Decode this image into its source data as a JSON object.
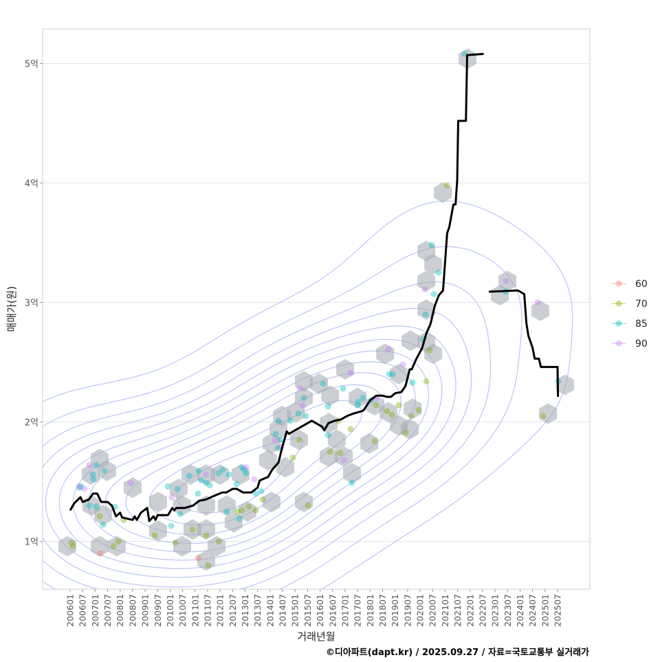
{
  "chart_data": {
    "type": "scatter",
    "title": "",
    "xlabel": "거래년월",
    "ylabel": "매매가(원)",
    "caption": "©디아파트(dapt.kr) / 2025.09.27 / 자료=국토교통부 실거래가",
    "x_unit": "months since 2006-01",
    "xlim": [
      -13.2,
      249.5
    ],
    "ylim": [
      0.6,
      5.29
    ],
    "grid": "horizontal",
    "y_ticks": [
      {
        "value": 1,
        "label": "1억"
      },
      {
        "value": 2,
        "label": "2억"
      },
      {
        "value": 3,
        "label": "3억"
      },
      {
        "value": 4,
        "label": "4억"
      },
      {
        "value": 5,
        "label": "5억"
      }
    ],
    "x_tick_labels": [
      "200601",
      "200607",
      "200701",
      "200707",
      "200801",
      "200807",
      "200901",
      "200907",
      "201001",
      "201007",
      "201101",
      "201107",
      "201201",
      "201207",
      "201301",
      "201307",
      "201401",
      "201407",
      "201501",
      "201507",
      "201601",
      "201607",
      "201701",
      "201707",
      "201801",
      "201807",
      "201901",
      "201907",
      "202001",
      "202007",
      "202101",
      "202107",
      "202201",
      "202207",
      "202301",
      "202307",
      "202401",
      "202407",
      "202501",
      "202507"
    ],
    "legend": {
      "position": "right",
      "entries": [
        {
          "label": "60",
          "color": "#F8766D"
        },
        {
          "label": "70",
          "color": "#7CAE00"
        },
        {
          "label": "85",
          "color": "#00BFC4"
        },
        {
          "label": "90",
          "color": "#C77CFF"
        }
      ]
    },
    "median_line": [
      [
        0,
        1.26
      ],
      [
        2,
        1.32
      ],
      [
        5,
        1.37
      ],
      [
        6,
        1.33
      ],
      [
        9,
        1.35
      ],
      [
        11,
        1.4
      ],
      [
        13,
        1.4
      ],
      [
        15,
        1.33
      ],
      [
        18,
        1.33
      ],
      [
        20,
        1.3
      ],
      [
        22,
        1.21
      ],
      [
        24,
        1.24
      ],
      [
        25,
        1.2
      ],
      [
        30,
        1.18
      ],
      [
        31,
        1.21
      ],
      [
        32,
        1.18
      ],
      [
        34,
        1.24
      ],
      [
        37,
        1.28
      ],
      [
        38,
        1.17
      ],
      [
        40,
        1.21
      ],
      [
        41,
        1.18
      ],
      [
        42,
        1.22
      ],
      [
        47,
        1.22
      ],
      [
        49,
        1.28
      ],
      [
        50,
        1.26
      ],
      [
        51,
        1.28
      ],
      [
        55,
        1.28
      ],
      [
        59,
        1.3
      ],
      [
        62,
        1.34
      ],
      [
        65,
        1.35
      ],
      [
        69,
        1.38
      ],
      [
        73,
        1.41
      ],
      [
        75,
        1.41
      ],
      [
        78,
        1.44
      ],
      [
        80,
        1.44
      ],
      [
        83,
        1.41
      ],
      [
        87,
        1.41
      ],
      [
        90,
        1.45
      ],
      [
        91,
        1.51
      ],
      [
        95,
        1.54
      ],
      [
        97,
        1.6
      ],
      [
        100,
        1.66
      ],
      [
        102,
        1.8
      ],
      [
        104,
        1.92
      ],
      [
        105,
        1.9
      ],
      [
        108,
        1.93
      ],
      [
        111,
        1.96
      ],
      [
        113,
        1.98
      ],
      [
        116,
        2.01
      ],
      [
        119,
        1.98
      ],
      [
        121,
        1.96
      ],
      [
        122,
        1.93
      ],
      [
        124,
        1.99
      ],
      [
        127,
        2.01
      ],
      [
        130,
        2.02
      ],
      [
        133,
        2.05
      ],
      [
        136,
        2.07
      ],
      [
        140,
        2.09
      ],
      [
        141,
        2.1
      ],
      [
        144,
        2.18
      ],
      [
        147,
        2.22
      ],
      [
        150,
        2.22
      ],
      [
        152,
        2.21
      ],
      [
        154,
        2.21
      ],
      [
        156,
        2.24
      ],
      [
        159,
        2.25
      ],
      [
        161,
        2.3
      ],
      [
        162,
        2.37
      ],
      [
        163,
        2.44
      ],
      [
        164,
        2.44
      ],
      [
        166,
        2.52
      ],
      [
        169,
        2.62
      ],
      [
        171,
        2.74
      ],
      [
        173,
        2.82
      ],
      [
        175,
        2.97
      ],
      [
        177,
        3.06
      ],
      [
        179,
        3.1
      ],
      [
        180,
        3.34
      ],
      [
        181,
        3.58
      ],
      [
        182,
        3.63
      ],
      [
        184,
        3.82
      ],
      [
        185,
        3.82
      ],
      [
        185.8,
        4.02
      ],
      [
        186.3,
        4.52
      ],
      [
        190,
        4.52
      ],
      [
        190.6,
        5.07
      ],
      [
        198.5,
        5.08
      ],
      null,
      [
        201,
        3.09
      ],
      [
        215,
        3.1
      ],
      [
        218,
        3.07
      ],
      [
        219,
        2.83
      ],
      [
        220,
        2.72
      ],
      [
        222,
        2.62
      ],
      [
        223,
        2.53
      ],
      [
        225,
        2.53
      ],
      [
        226,
        2.46
      ],
      [
        234,
        2.46
      ],
      [
        234.2,
        2.21
      ]
    ],
    "hexbins": [
      [
        -1.3,
        0.96
      ],
      [
        14.2,
        1.69
      ],
      [
        9.9,
        1.56
      ],
      [
        17.8,
        1.59
      ],
      [
        10.2,
        1.3
      ],
      [
        15.8,
        1.22
      ],
      [
        14.2,
        0.96
      ],
      [
        22.4,
        0.96
      ],
      [
        30,
        1.45
      ],
      [
        42.2,
        1.33
      ],
      [
        42.2,
        1.09
      ],
      [
        53.8,
        0.96
      ],
      [
        65.3,
        0.84
      ],
      [
        57.8,
        1.56
      ],
      [
        52.1,
        1.44
      ],
      [
        53.8,
        1.3
      ],
      [
        65.3,
        1.56
      ],
      [
        71.9,
        1.56
      ],
      [
        81.8,
        1.56
      ],
      [
        65.3,
        1.3
      ],
      [
        75.2,
        1.3
      ],
      [
        85.1,
        1.25
      ],
      [
        58.7,
        1.1
      ],
      [
        65.3,
        1.1
      ],
      [
        70.3,
        0.96
      ],
      [
        78.5,
        1.16
      ],
      [
        96.7,
        1.33
      ],
      [
        95,
        1.68
      ],
      [
        100,
        1.94
      ],
      [
        96.7,
        1.82
      ],
      [
        101.7,
        2.05
      ],
      [
        108.3,
        2.08
      ],
      [
        109.9,
        1.85
      ],
      [
        112.2,
        2.34
      ],
      [
        112.2,
        2.2
      ],
      [
        119.5,
        2.32
      ],
      [
        124.8,
        2.22
      ],
      [
        124.1,
        1.99
      ],
      [
        128,
        1.85
      ],
      [
        124.1,
        1.71
      ],
      [
        131.4,
        1.71
      ],
      [
        135.3,
        1.57
      ],
      [
        132,
        2.44
      ],
      [
        138,
        2.2
      ],
      [
        143.6,
        1.82
      ],
      [
        146.2,
        2.14
      ],
      [
        151.2,
        2.57
      ],
      [
        152.8,
        2.08
      ],
      [
        157.8,
        1.97
      ],
      [
        163,
        1.94
      ],
      [
        164.4,
        2.11
      ],
      [
        157.8,
        2.4
      ],
      [
        163.4,
        2.68
      ],
      [
        171,
        2.67
      ],
      [
        174.3,
        2.57
      ],
      [
        171,
        2.94
      ],
      [
        171,
        3.18
      ],
      [
        174.3,
        3.32
      ],
      [
        171,
        3.43
      ],
      [
        178.9,
        3.92
      ],
      [
        190.8,
        5.04
      ],
      [
        206.3,
        3.06
      ],
      [
        209.9,
        3.18
      ],
      [
        225.7,
        2.93
      ],
      [
        237.6,
        2.31
      ],
      [
        229.4,
        2.07
      ],
      [
        112.2,
        1.33
      ],
      [
        103.3,
        1.62
      ]
    ],
    "points": {
      "60": [
        [
          14.5,
          0.9
        ],
        [
          61.4,
          0.86
        ]
      ],
      "70": [
        [
          0.7,
          0.99
        ],
        [
          1.3,
          0.96
        ],
        [
          14.2,
          1.21
        ],
        [
          20.8,
          0.96
        ],
        [
          23.1,
          1.0
        ],
        [
          25.7,
          1.18
        ],
        [
          40.6,
          1.05
        ],
        [
          50.5,
          0.99
        ],
        [
          58.7,
          1.1
        ],
        [
          65.3,
          1.05
        ],
        [
          66.3,
          0.8
        ],
        [
          71.3,
          1.0
        ],
        [
          80.2,
          1.25
        ],
        [
          82.5,
          1.26
        ],
        [
          85.8,
          1.29
        ],
        [
          92.4,
          1.35
        ],
        [
          89.1,
          1.26
        ],
        [
          114.2,
          1.3
        ],
        [
          106.9,
          1.7
        ],
        [
          109.9,
          1.85
        ],
        [
          124.8,
          1.75
        ],
        [
          129.7,
          1.74
        ],
        [
          134.7,
          1.94
        ],
        [
          146.2,
          1.84
        ],
        [
          146.9,
          2.14
        ],
        [
          152.1,
          2.09
        ],
        [
          154.5,
          2.06
        ],
        [
          157.8,
          2.14
        ],
        [
          161.1,
          1.91
        ],
        [
          163.7,
          2.05
        ],
        [
          167.3,
          2.1
        ],
        [
          171,
          2.34
        ],
        [
          172.6,
          2.6
        ],
        [
          180.9,
          3.98
        ],
        [
          227.1,
          2.05
        ],
        [
          128.7,
          2.01
        ]
      ],
      "85": [
        [
          4.6,
          1.45
        ],
        [
          5.3,
          1.46
        ],
        [
          10.9,
          1.56
        ],
        [
          12.5,
          1.64
        ],
        [
          16.5,
          1.59
        ],
        [
          11.2,
          1.52
        ],
        [
          9.2,
          1.3
        ],
        [
          21.5,
          1.29
        ],
        [
          46.9,
          1.46
        ],
        [
          51.5,
          1.44
        ],
        [
          57.1,
          1.55
        ],
        [
          61.7,
          1.59
        ],
        [
          63,
          1.51
        ],
        [
          65.3,
          1.49
        ],
        [
          67,
          1.47
        ],
        [
          71.3,
          1.57
        ],
        [
          73.3,
          1.6
        ],
        [
          76.2,
          1.56
        ],
        [
          79.9,
          1.48
        ],
        [
          82.5,
          1.62
        ],
        [
          83.5,
          1.6
        ],
        [
          84.5,
          1.57
        ],
        [
          75.2,
          1.25
        ],
        [
          81.2,
          1.19
        ],
        [
          89.1,
          1.4
        ],
        [
          91.7,
          1.42
        ],
        [
          98.7,
          1.9
        ],
        [
          99.7,
          1.78
        ],
        [
          101,
          1.85
        ],
        [
          100,
          2.01
        ],
        [
          105.6,
          2.01
        ],
        [
          112.2,
          2.2
        ],
        [
          113.2,
          2.05
        ],
        [
          109.6,
          2.07
        ],
        [
          121.5,
          2.32
        ],
        [
          123.8,
          2.13
        ],
        [
          123.8,
          1.89
        ],
        [
          131,
          2.28
        ],
        [
          135.3,
          1.49
        ],
        [
          138,
          2.14
        ],
        [
          138.3,
          2.17
        ],
        [
          140.6,
          2.2
        ],
        [
          144.6,
          2.18
        ],
        [
          153.1,
          2.4
        ],
        [
          154.8,
          2.4
        ],
        [
          164.4,
          2.33
        ],
        [
          169.3,
          2.69
        ],
        [
          170.6,
          2.9
        ],
        [
          174.6,
          3.07
        ],
        [
          173.6,
          3.48
        ],
        [
          176.9,
          3.25
        ],
        [
          189.4,
          5.08
        ],
        [
          209.2,
          3.09
        ],
        [
          234.3,
          2.34
        ],
        [
          61.4,
          1.4
        ],
        [
          52.8,
          1.23
        ],
        [
          48.5,
          1.13
        ],
        [
          15.8,
          1.14
        ],
        [
          12.5,
          1.29
        ]
      ],
      "90": [
        [
          4.3,
          1.46
        ],
        [
          6.9,
          1.44
        ],
        [
          9.2,
          1.64
        ],
        [
          29,
          1.49
        ],
        [
          48.8,
          1.37
        ],
        [
          65.3,
          1.56
        ],
        [
          84.5,
          1.62
        ],
        [
          88.4,
          1.52
        ],
        [
          98.3,
          1.85
        ],
        [
          101,
          1.79
        ],
        [
          110.2,
          2.28
        ],
        [
          111.6,
          2.14
        ],
        [
          134.7,
          2.41
        ],
        [
          131.4,
          1.68
        ],
        [
          147.2,
          2.2
        ],
        [
          152.8,
          2.61
        ],
        [
          159.7,
          2.48
        ],
        [
          170.3,
          3.11
        ],
        [
          209.2,
          3.18
        ],
        [
          224.4,
          3.0
        ]
      ]
    }
  }
}
